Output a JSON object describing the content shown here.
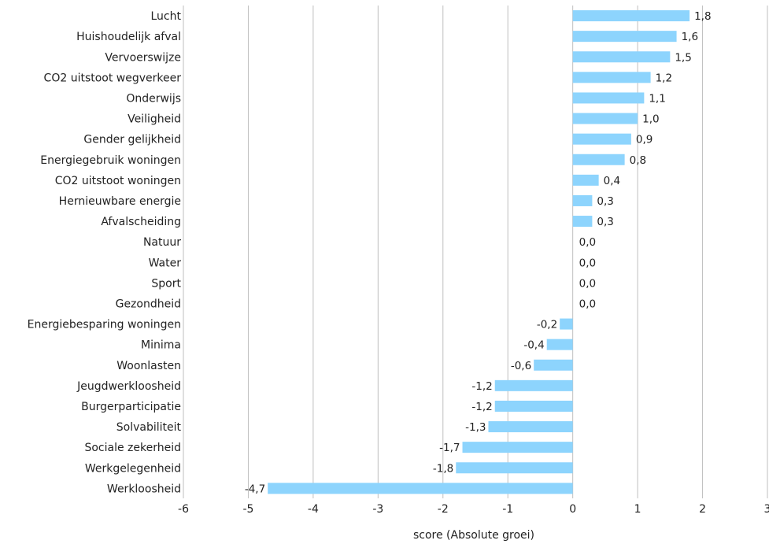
{
  "chart_data": {
    "type": "bar",
    "orientation": "horizontal",
    "categories": [
      "Lucht",
      "Huishoudelijk afval",
      "Vervoerswijze",
      "CO2 uitstoot wegverkeer",
      "Onderwijs",
      "Veiligheid",
      "Gender gelijkheid",
      "Energiegebruik woningen",
      "CO2 uitstoot woningen",
      "Hernieuwbare energie",
      "Afvalscheiding",
      "Natuur",
      "Water",
      "Sport",
      "Gezondheid",
      "Energiebesparing woningen",
      "Minima",
      "Woonlasten",
      "Jeugdwerkloosheid",
      "Burgerparticipatie",
      "Solvabiliteit",
      "Sociale zekerheid",
      "Werkgelegenheid",
      "Werkloosheid"
    ],
    "values": [
      1.8,
      1.6,
      1.5,
      1.2,
      1.1,
      1.0,
      0.9,
      0.8,
      0.4,
      0.3,
      0.3,
      0.0,
      0.0,
      0.0,
      0.0,
      -0.2,
      -0.4,
      -0.6,
      -1.2,
      -1.2,
      -1.3,
      -1.7,
      -1.8,
      -4.7
    ],
    "value_labels": [
      "1,8",
      "1,6",
      "1,5",
      "1,2",
      "1,1",
      "1,0",
      "0,9",
      "0,8",
      "0,4",
      "0,3",
      "0,3",
      "0,0",
      "0,0",
      "0,0",
      "0,0",
      "-0,2",
      "-0,4",
      "-0,6",
      "-1,2",
      "-1,2",
      "-1,3",
      "-1,7",
      "-1,8",
      "-4,7"
    ],
    "xlabel": "score (Absolute groei)",
    "ylabel": "",
    "xlim": [
      -6,
      3
    ],
    "xticks": [
      -6,
      -5,
      -4,
      -3,
      -2,
      -1,
      0,
      1,
      2,
      3
    ],
    "grid": "vertical",
    "legend": "none",
    "bar_color": "#8dd4fd"
  }
}
